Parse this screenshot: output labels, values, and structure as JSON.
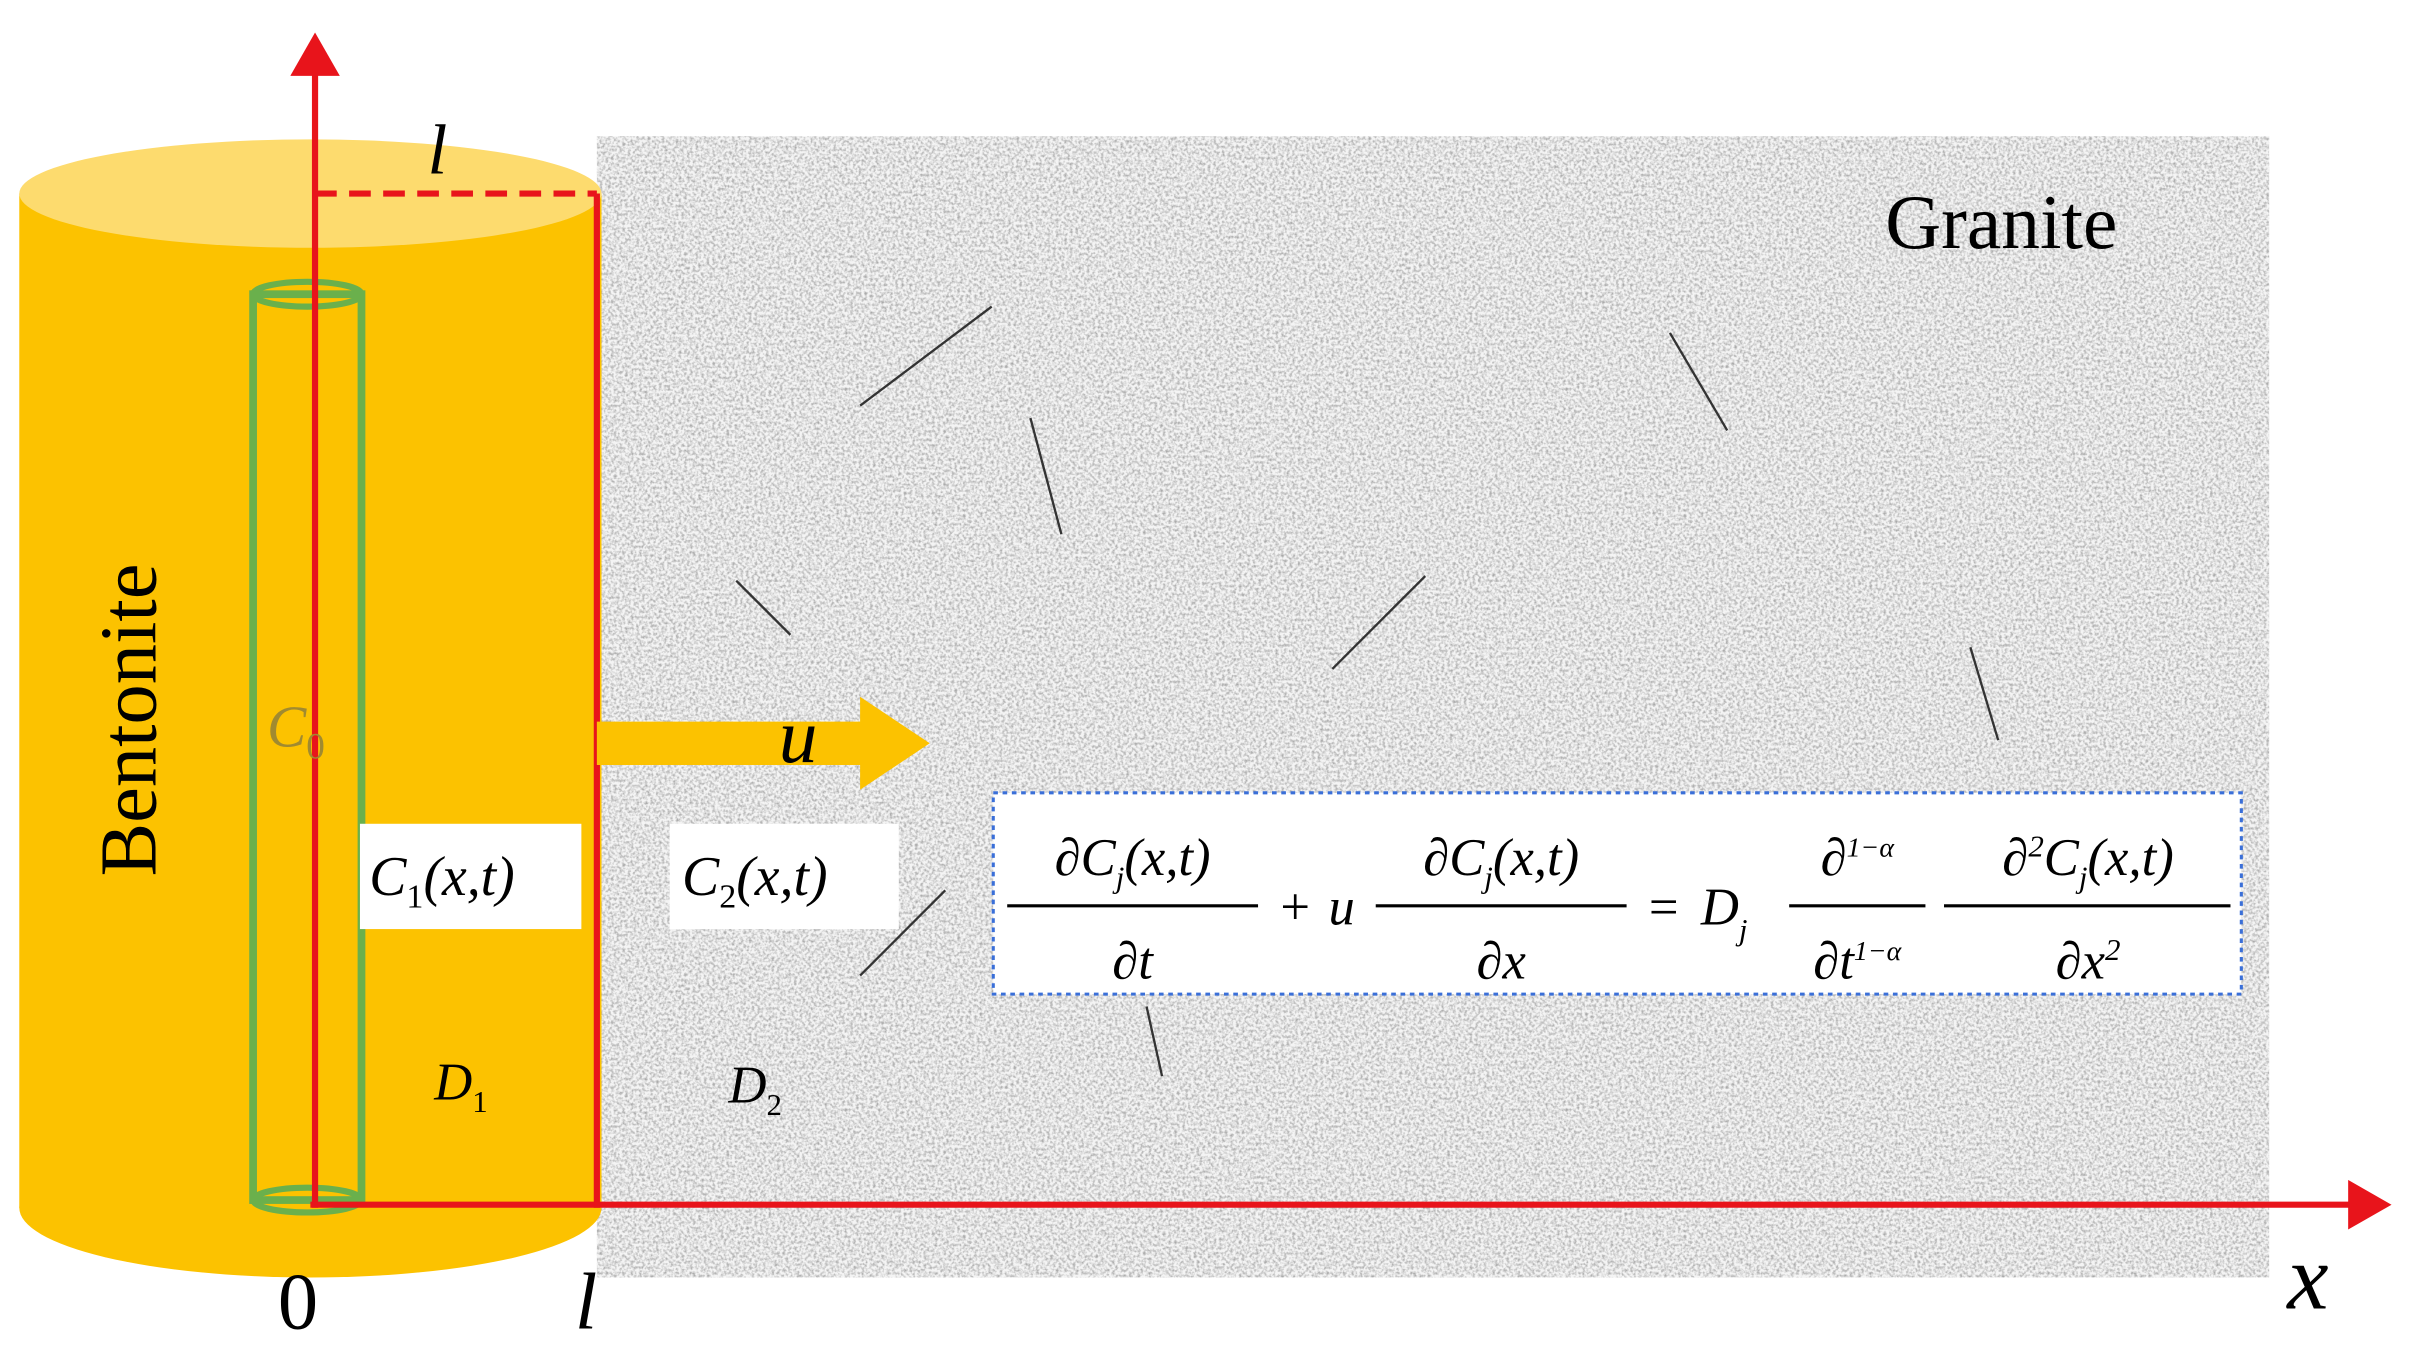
{
  "labels": {
    "granite": "Granite",
    "bentonite": "Bentonite",
    "u": "u",
    "axis_l_top": "l",
    "origin": "0",
    "axis_l_bottom": "l",
    "axis_x": "x"
  },
  "symbols": {
    "c0": [
      "C",
      "0"
    ],
    "c1": [
      "C",
      "1",
      "(x,t)"
    ],
    "c2": [
      "C",
      "2",
      "(x,t)"
    ],
    "d1": [
      "D",
      "1"
    ],
    "d2": [
      "D",
      "2"
    ]
  },
  "equation": {
    "term1": {
      "num": [
        "∂C",
        "j",
        "(x,t)"
      ],
      "den": "∂t"
    },
    "plus": "+",
    "u": "u",
    "term2": {
      "num": [
        "∂C",
        "j",
        "(x,t)"
      ],
      "den": "∂x"
    },
    "equals": "=",
    "d": [
      "D",
      "j"
    ],
    "term3": {
      "num": [
        "∂",
        "1−α"
      ],
      "den": [
        "∂t",
        "1−α"
      ]
    },
    "term4": {
      "num": [
        "∂",
        "2",
        "C",
        "j",
        "(x,t)"
      ],
      "den": [
        "∂x",
        "2"
      ]
    }
  }
}
